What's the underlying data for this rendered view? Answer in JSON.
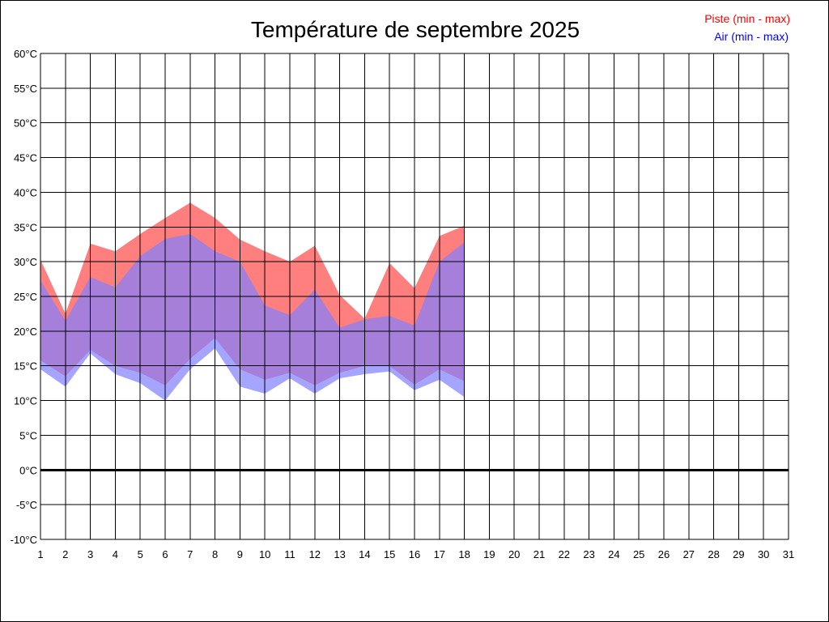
{
  "chart_data": {
    "type": "area",
    "title": "Température de septembre 2025",
    "xlabel": "",
    "ylabel": "",
    "x": [
      1,
      2,
      3,
      4,
      5,
      6,
      7,
      8,
      9,
      10,
      11,
      12,
      13,
      14,
      15,
      16,
      17,
      18,
      19,
      20,
      21,
      22,
      23,
      24,
      25,
      26,
      27,
      28,
      29,
      30,
      31
    ],
    "xlim": [
      1,
      31
    ],
    "ylim": [
      -10,
      60
    ],
    "y_ticks": [
      -10,
      -5,
      0,
      5,
      10,
      15,
      20,
      25,
      30,
      35,
      40,
      45,
      50,
      55,
      60
    ],
    "y_tick_labels": [
      "-10°C",
      "-5°C",
      "0°C",
      "5°C",
      "10°C",
      "15°C",
      "20°C",
      "25°C",
      "30°C",
      "35°C",
      "40°C",
      "45°C",
      "50°C",
      "55°C",
      "60°C"
    ],
    "grid": true,
    "legend_position": "top-right",
    "zero_line": true,
    "series": [
      {
        "name": "Piste (min - max)",
        "color": "#ff7f7f",
        "legend_color": "#ff0000",
        "days": [
          1,
          2,
          3,
          4,
          5,
          6,
          7,
          8,
          9,
          10,
          11,
          12,
          13,
          14,
          15,
          16,
          17,
          18
        ],
        "min": [
          15.8,
          13.5,
          17.3,
          15.0,
          14.0,
          12.2,
          16.0,
          19.0,
          14.5,
          13.0,
          14.0,
          12.2,
          14.0,
          15.0,
          15.0,
          12.3,
          14.5,
          12.8
        ],
        "max": [
          30.3,
          22.5,
          32.6,
          31.5,
          34.0,
          36.3,
          38.5,
          36.3,
          33.2,
          31.5,
          30.0,
          32.3,
          25.2,
          21.8,
          29.8,
          26.2,
          33.7,
          35.2
        ]
      },
      {
        "name": "Air (min - max)",
        "color": "#7f7fff",
        "legend_color": "#0000ff",
        "days": [
          1,
          2,
          3,
          4,
          5,
          6,
          7,
          8,
          9,
          10,
          11,
          12,
          13,
          14,
          15,
          16,
          17,
          18
        ],
        "min": [
          14.5,
          12.0,
          16.8,
          13.8,
          12.5,
          10.0,
          14.5,
          17.5,
          12.0,
          11.0,
          13.2,
          11.0,
          13.2,
          13.8,
          14.2,
          11.5,
          13.0,
          10.5
        ],
        "max": [
          27.3,
          21.5,
          27.8,
          26.3,
          30.8,
          33.3,
          34.0,
          31.5,
          30.0,
          23.7,
          22.3,
          26.0,
          20.5,
          21.7,
          22.2,
          20.8,
          30.0,
          32.8
        ]
      }
    ]
  }
}
